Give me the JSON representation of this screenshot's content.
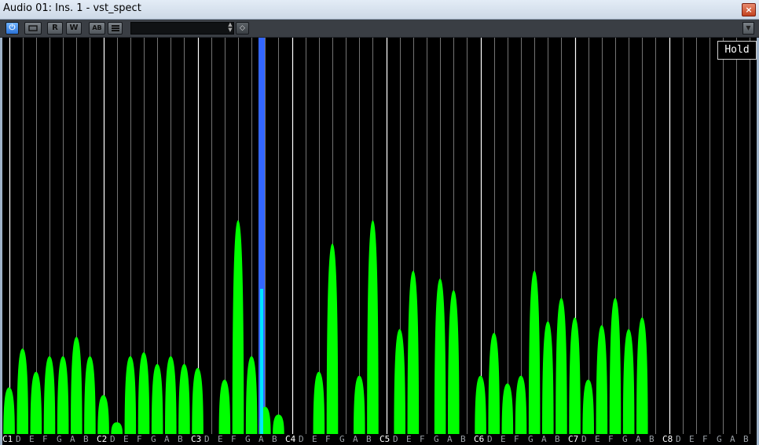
{
  "window": {
    "title": "Audio 01: Ins. 1 - vst_spect",
    "close_glyph": "×"
  },
  "toolbar": {
    "power_icon": "⏻",
    "bypass_label": "",
    "read_label": "R",
    "write_label": "W",
    "ab_label": "AB",
    "list_label": "",
    "preset_value": "",
    "spin_up": "▲",
    "spin_down": "▼",
    "preset_icon": "◇",
    "menu_arrow": "▼",
    "accent_color": "#3d8fff"
  },
  "hold_button": {
    "label": "Hold"
  },
  "spectrum": {
    "bar_color": "#00ff00",
    "peak_color": "#3366ff",
    "peak_core_color": "#00e5ff",
    "line_color": "#808080",
    "octave_line_color": "#ffffff",
    "octaves": [
      "C1",
      "C2",
      "C3",
      "C4",
      "C5",
      "C6",
      "C7",
      "C8"
    ],
    "note_letters": [
      "D",
      "E",
      "F",
      "G",
      "A",
      "B"
    ]
  },
  "note_labels": [
    {
      "t": "C1",
      "o": true
    },
    {
      "t": "D"
    },
    {
      "t": "E"
    },
    {
      "t": "F"
    },
    {
      "t": "G"
    },
    {
      "t": "A"
    },
    {
      "t": "B"
    },
    {
      "t": "C2",
      "o": true
    },
    {
      "t": "D"
    },
    {
      "t": "E"
    },
    {
      "t": "F"
    },
    {
      "t": "G"
    },
    {
      "t": "A"
    },
    {
      "t": "B"
    },
    {
      "t": "C3",
      "o": true
    },
    {
      "t": "D"
    },
    {
      "t": "E"
    },
    {
      "t": "F"
    },
    {
      "t": "G"
    },
    {
      "t": "A"
    },
    {
      "t": "B"
    },
    {
      "t": "C4",
      "o": true
    },
    {
      "t": "D"
    },
    {
      "t": "E"
    },
    {
      "t": "F"
    },
    {
      "t": "G"
    },
    {
      "t": "A"
    },
    {
      "t": "B"
    },
    {
      "t": "C5",
      "o": true
    },
    {
      "t": "D"
    },
    {
      "t": "E"
    },
    {
      "t": "F"
    },
    {
      "t": "G"
    },
    {
      "t": "A"
    },
    {
      "t": "B"
    },
    {
      "t": "C6",
      "o": true
    },
    {
      "t": "D"
    },
    {
      "t": "E"
    },
    {
      "t": "F"
    },
    {
      "t": "G"
    },
    {
      "t": "A"
    },
    {
      "t": "B"
    },
    {
      "t": "C7",
      "o": true
    },
    {
      "t": "D"
    },
    {
      "t": "E"
    },
    {
      "t": "F"
    },
    {
      "t": "G"
    },
    {
      "t": "A"
    },
    {
      "t": "B"
    },
    {
      "t": "C8",
      "o": true
    },
    {
      "t": "D"
    },
    {
      "t": "E"
    },
    {
      "t": "F"
    },
    {
      "t": "G"
    },
    {
      "t": "A"
    },
    {
      "t": "B"
    }
  ],
  "levels": [
    0.12,
    0.22,
    0.16,
    0.2,
    0.2,
    0.25,
    0.2,
    0.1,
    0.03,
    0.2,
    0.21,
    0.18,
    0.2,
    0.18,
    0.17,
    0.0,
    0.14,
    0.55,
    0.2,
    0.07,
    0.05,
    0.0,
    0.0,
    0.16,
    0.49,
    0.0,
    0.15,
    0.55,
    0.0,
    0.27,
    0.42,
    0.0,
    0.4,
    0.37,
    0.0,
    0.15,
    0.26,
    0.13,
    0.15,
    0.42,
    0.29,
    0.35,
    0.3,
    0.14,
    0.28,
    0.35,
    0.27,
    0.3
  ]
}
